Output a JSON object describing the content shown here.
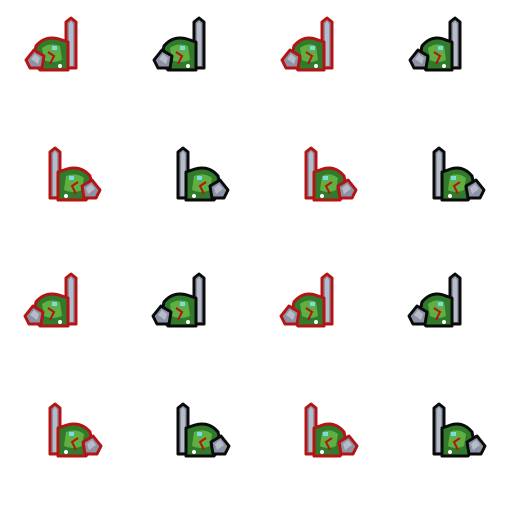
{
  "sheet": {
    "title": "",
    "background": "#ffffff",
    "columns": 4,
    "rows": 4
  },
  "palette": {
    "red_outline": "#b41414",
    "black_outline": "#0a0a0a",
    "steel_light": "#b8bcc8",
    "steel_mid": "#8c93a6",
    "steel_dark": "#5a6070",
    "green_light": "#5fb043",
    "green_dark": "#2f7a2b",
    "cyan_eye": "#7fd8e6",
    "white_spot": "#ffffff"
  },
  "sprites": [
    {
      "icon": "orc-warrior-icon",
      "facing": "left",
      "outline": "red",
      "frame": 1
    },
    {
      "icon": "orc-warrior-icon",
      "facing": "left",
      "outline": "black",
      "frame": 1
    },
    {
      "icon": "orc-warrior-icon",
      "facing": "left",
      "outline": "red",
      "frame": 2
    },
    {
      "icon": "orc-warrior-icon",
      "facing": "left",
      "outline": "black",
      "frame": 2
    },
    {
      "icon": "orc-warrior-icon",
      "facing": "right",
      "outline": "red",
      "frame": 1
    },
    {
      "icon": "orc-warrior-icon",
      "facing": "right",
      "outline": "black",
      "frame": 1
    },
    {
      "icon": "orc-warrior-icon",
      "facing": "right",
      "outline": "red",
      "frame": 2
    },
    {
      "icon": "orc-warrior-icon",
      "facing": "right",
      "outline": "black",
      "frame": 2
    },
    {
      "icon": "orc-warrior-icon",
      "facing": "left",
      "outline": "red",
      "frame": 3
    },
    {
      "icon": "orc-warrior-icon",
      "facing": "left",
      "outline": "black",
      "frame": 3
    },
    {
      "icon": "orc-warrior-icon",
      "facing": "left",
      "outline": "red",
      "frame": 4
    },
    {
      "icon": "orc-warrior-icon",
      "facing": "left",
      "outline": "black",
      "frame": 4
    },
    {
      "icon": "orc-warrior-icon",
      "facing": "right",
      "outline": "red",
      "frame": 3
    },
    {
      "icon": "orc-warrior-icon",
      "facing": "right",
      "outline": "black",
      "frame": 3
    },
    {
      "icon": "orc-warrior-icon",
      "facing": "right",
      "outline": "red",
      "frame": 4
    },
    {
      "icon": "orc-warrior-icon",
      "facing": "right",
      "outline": "black",
      "frame": 4
    }
  ]
}
